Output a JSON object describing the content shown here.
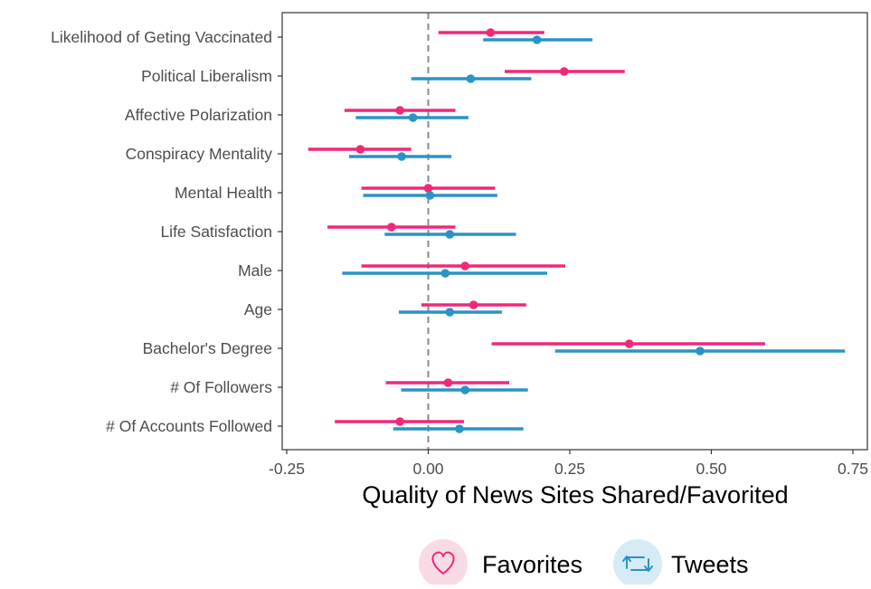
{
  "chart_data": {
    "type": "scatter",
    "subtype": "coefficient-plot",
    "xlabel": "Quality of News Sites Shared/Favorited",
    "ylabel": "",
    "xlim": [
      -0.25,
      0.75
    ],
    "xticks": [
      "-0.25",
      "0.00",
      "0.25",
      "0.50",
      "0.75"
    ],
    "xtick_values": [
      -0.25,
      0.0,
      0.25,
      0.5,
      0.75
    ],
    "reference_line": 0.0,
    "grid": false,
    "legend_position": "bottom",
    "categories": [
      "Likelihood of Geting Vaccinated",
      "Political Liberalism",
      "Affective Polarization",
      "Conspiracy Mentality",
      "Mental Health",
      "Life Satisfaction",
      "Male",
      "Age",
      "Bachelor's Degree",
      "# Of Followers",
      "# Of Accounts Followed"
    ],
    "series": [
      {
        "name": "Favorites",
        "color": "#f0287a",
        "icon": "heart-icon",
        "estimate": [
          0.11,
          0.24,
          -0.05,
          -0.12,
          0.0,
          -0.065,
          0.065,
          0.08,
          0.355,
          0.035,
          -0.05
        ],
        "lower": [
          0.018,
          0.135,
          -0.148,
          -0.212,
          -0.118,
          -0.178,
          -0.118,
          -0.012,
          0.112,
          -0.075,
          -0.165
        ],
        "upper": [
          0.205,
          0.347,
          0.048,
          -0.03,
          0.118,
          0.048,
          0.242,
          0.173,
          0.595,
          0.143,
          0.063
        ]
      },
      {
        "name": "Tweets",
        "color": "#2a94c4",
        "icon": "retweet-icon",
        "estimate": [
          0.192,
          0.075,
          -0.027,
          -0.047,
          0.003,
          0.038,
          0.03,
          0.038,
          0.48,
          0.065,
          0.055
        ],
        "lower": [
          0.097,
          -0.03,
          -0.128,
          -0.14,
          -0.115,
          -0.077,
          -0.152,
          -0.052,
          0.224,
          -0.048,
          -0.062
        ],
        "upper": [
          0.29,
          0.182,
          0.071,
          0.041,
          0.122,
          0.155,
          0.21,
          0.13,
          0.736,
          0.176,
          0.168
        ]
      }
    ]
  }
}
